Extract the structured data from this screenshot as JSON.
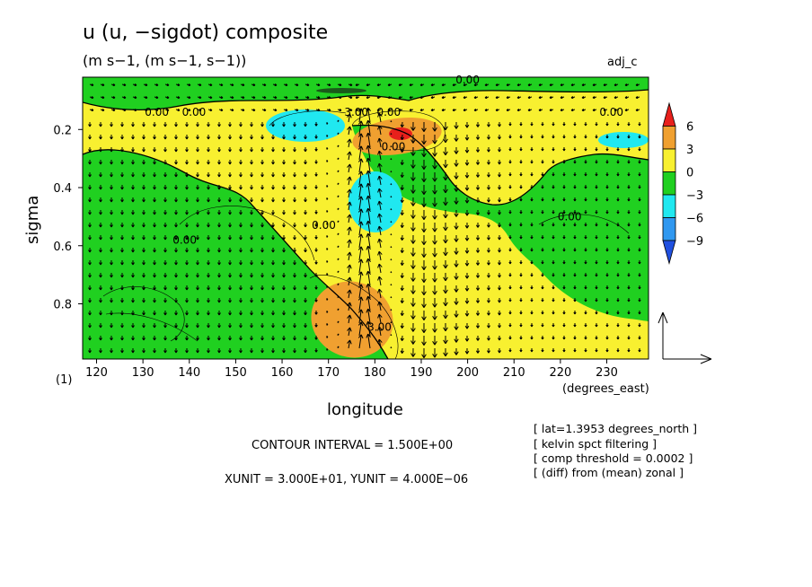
{
  "chart_data": {
    "type": "contour",
    "title": "u (u, −sigdot) composite",
    "subtitle": "(m s−1, (m s−1, s−1))",
    "tag": "adj_c",
    "xlabel": "longitude",
    "xunits": "(degrees_east)",
    "ylabel": "sigma",
    "figure_label": "(1)",
    "xlim": [
      117,
      239
    ],
    "ylim": [
      0.99,
      0.02
    ],
    "x_ticks": [
      120,
      130,
      140,
      150,
      160,
      170,
      180,
      190,
      200,
      210,
      220,
      230
    ],
    "x_tick_labels": [
      "120",
      "130",
      "140",
      "150",
      "160",
      "170",
      "180",
      "190",
      "200",
      "210",
      "220",
      "230"
    ],
    "y_ticks": [
      0.2,
      0.4,
      0.6,
      0.8
    ],
    "y_tick_labels": [
      "0.2",
      "0.4",
      "0.6",
      "0.8"
    ],
    "colorbar": {
      "levels": [
        -9,
        -6,
        -3,
        0,
        3,
        6
      ],
      "labels": [
        "6",
        "3",
        "0",
        "−3",
        "−6",
        "−9"
      ],
      "colors": [
        "#e8201c",
        "#f0a030",
        "#f8f030",
        "#20d020",
        "#20e8f0",
        "#3098f0",
        "#2050e0"
      ]
    },
    "contour_labels": [
      {
        "text": "0.00",
        "x": 141,
        "y": 0.14
      },
      {
        "text": "0.00",
        "x": 133,
        "y": 0.14
      },
      {
        "text": "0.00",
        "x": 183,
        "y": 0.14
      },
      {
        "text": "0.00",
        "x": 231,
        "y": 0.14
      },
      {
        "text": "0.00",
        "x": 200,
        "y": 0.03
      },
      {
        "text": "3.00",
        "x": 176,
        "y": 0.14
      },
      {
        "text": "0.00",
        "x": 184,
        "y": 0.26
      },
      {
        "text": "0.00",
        "x": 169,
        "y": 0.53
      },
      {
        "text": "0.00",
        "x": 139,
        "y": 0.58
      },
      {
        "text": "0.00",
        "x": 222,
        "y": 0.5
      },
      {
        "text": "3.00",
        "x": 181,
        "y": 0.88
      }
    ],
    "colors": {
      "warm": "#f8f030",
      "orange": "#f0a030",
      "red": "#e8201c",
      "green": "#20d020",
      "cyan": "#20e8f0",
      "blue": "#3098f0"
    }
  },
  "footer": {
    "contour_interval": "CONTOUR INTERVAL = 1.500E+00",
    "units": "XUNIT = 3.000E+01, YUNIT = 4.000E−06"
  },
  "notes": [
    "[ lat=1.3953 degrees_north ]",
    "[ kelvin spct filtering ]",
    "[ comp threshold = 0.0002 ]",
    "[ (diff) from (mean) zonal ]"
  ]
}
